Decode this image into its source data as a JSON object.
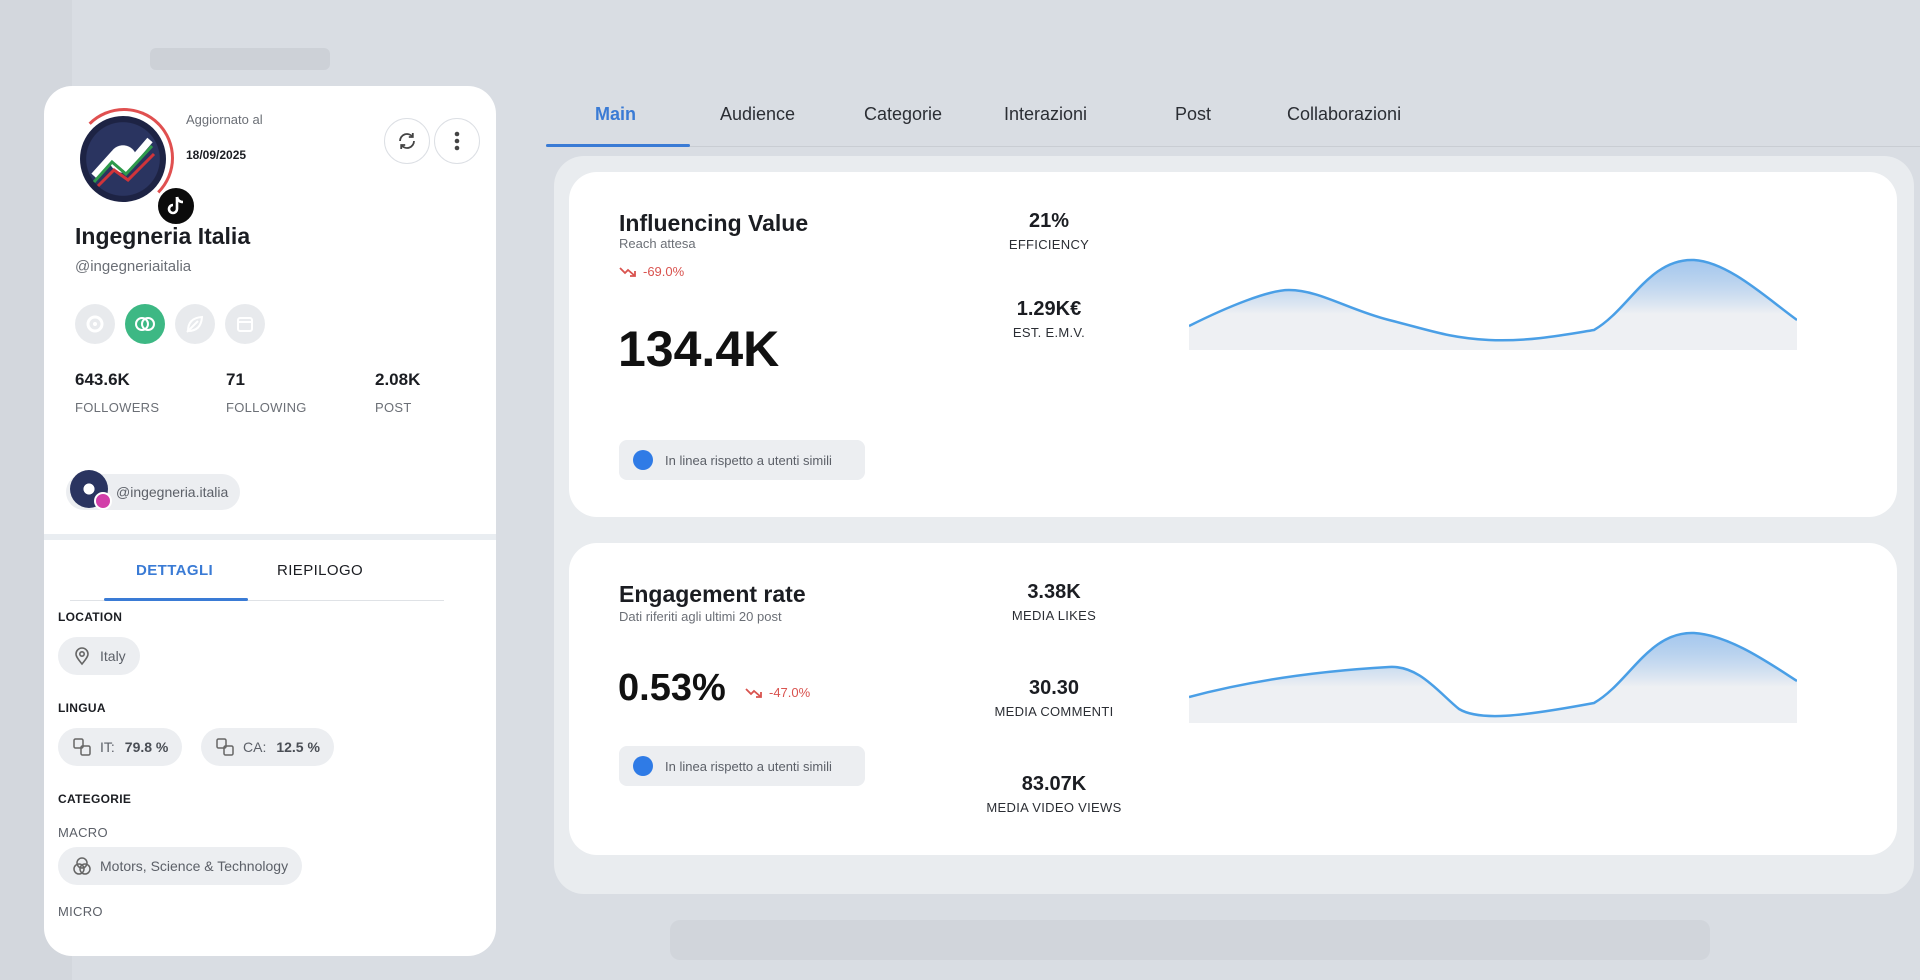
{
  "profile": {
    "updated_label": "Aggiornato al",
    "updated_date": "18/09/2025",
    "name": "Ingegneria Italia",
    "handle": "@ingegneriaitalia",
    "stats": [
      {
        "value": "643.6K",
        "label": "FOLLOWERS"
      },
      {
        "value": "71",
        "label": "FOLLOWING"
      },
      {
        "value": "2.08K",
        "label": "POST"
      }
    ],
    "linked_account": "@ingegneria.italia",
    "tabs": [
      "DETTAGLI",
      "RIEPILOGO"
    ],
    "location_title": "LOCATION",
    "location": "Italy",
    "lingua_title": "LINGUA",
    "languages": [
      {
        "code": "IT:",
        "value": "79.8 %"
      },
      {
        "code": "CA:",
        "value": "12.5 %"
      }
    ],
    "categorie_title": "CATEGORIE",
    "macro_label": "MACRO",
    "macro_value": "Motors, Science & Technology",
    "micro_label": "MICRO"
  },
  "tabs": [
    "Main",
    "Audience",
    "Categorie",
    "Interazioni",
    "Post",
    "Collaborazioni"
  ],
  "influencing": {
    "title": "Influencing Value",
    "subtitle": "Reach attesa",
    "trend": "-69.0%",
    "value": "134.4K",
    "kpis": [
      {
        "value": "21%",
        "label": "EFFICIENCY"
      },
      {
        "value": "1.29K€",
        "label": "EST. E.M.V."
      }
    ],
    "pill": "In linea rispetto a utenti simili"
  },
  "engagement": {
    "title": "Engagement rate",
    "subtitle": "Dati riferiti agli ultimi 20 post",
    "value": "0.53%",
    "trend": "-47.0%",
    "kpis": [
      {
        "value": "3.38K",
        "label": "MEDIA LIKES"
      },
      {
        "value": "30.30",
        "label": "MEDIA COMMENTI"
      },
      {
        "value": "83.07K",
        "label": "MEDIA VIDEO VIEWS"
      }
    ],
    "pill": "In linea rispetto a utenti simili"
  },
  "colors": {
    "accent": "#3a7bd5",
    "trend_down": "#d9534f",
    "active_social": "#3db884",
    "chart_line": "#4a9fe6"
  }
}
